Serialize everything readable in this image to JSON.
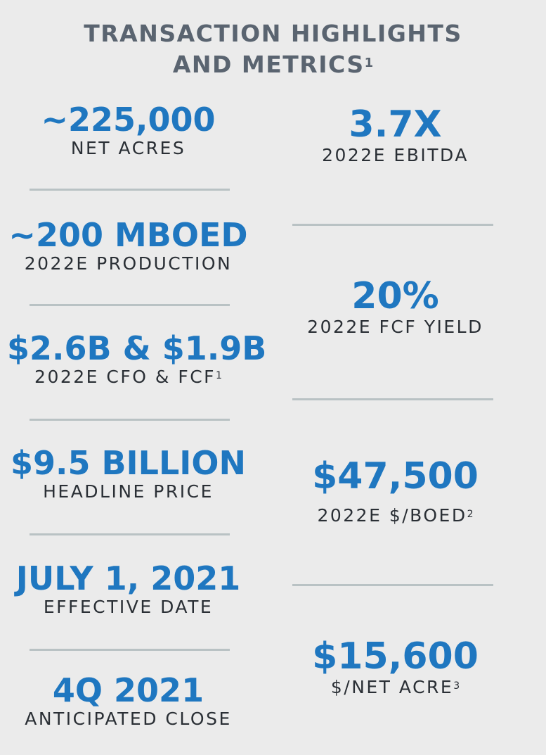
{
  "title": {
    "line1": "TRANSACTION HIGHLIGHTS",
    "line2": "AND METRICS",
    "sup": "1"
  },
  "left": [
    {
      "value": "~225,000",
      "label": "NET ACRES",
      "sup": ""
    },
    {
      "value": "~200 MBOED",
      "label": "2022E PRODUCTION",
      "sup": ""
    },
    {
      "value": "$2.6B & $1.9B",
      "label": "2022E CFO & FCF",
      "sup": "1"
    },
    {
      "value": "$9.5 BILLION",
      "label": "HEADLINE PRICE",
      "sup": ""
    },
    {
      "value": "JULY 1, 2021",
      "label": "EFFECTIVE DATE",
      "sup": ""
    },
    {
      "value": "4Q 2021",
      "label": "ANTICIPATED CLOSE",
      "sup": ""
    }
  ],
  "right": [
    {
      "value": "3.7X",
      "label": "2022E EBITDA",
      "sup": ""
    },
    {
      "value": "20%",
      "label": "2022E FCF YIELD",
      "sup": ""
    },
    {
      "value": "$47,500",
      "label": "2022E $/BOED",
      "sup": "2"
    },
    {
      "value": "$15,600",
      "label": "$/NET ACRE",
      "sup": "3"
    }
  ],
  "colors": {
    "background": "#ebebeb",
    "title": "#5a6470",
    "value": "#1f77c0",
    "label": "#2a2f35",
    "rule": "#b9c2c4"
  }
}
